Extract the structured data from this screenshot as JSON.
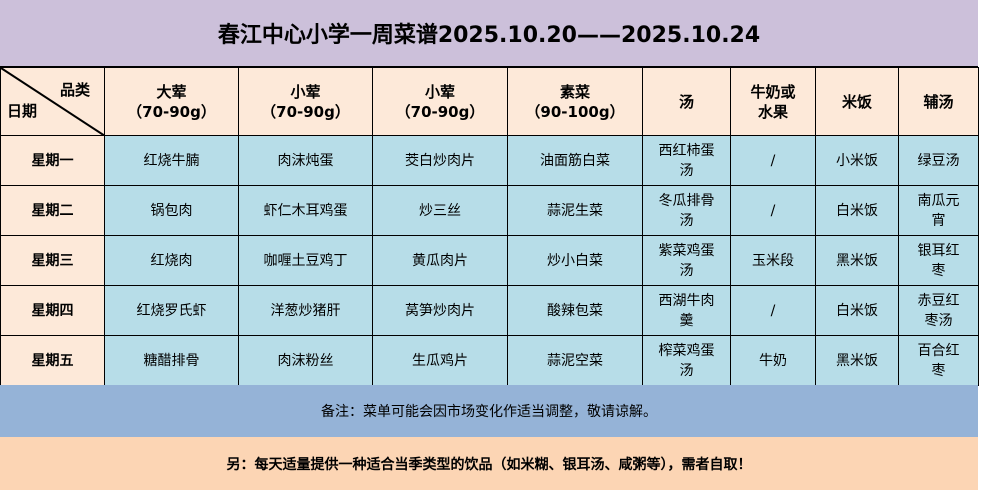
{
  "title": "春江中心小学一周菜谱2025.10.20——2025.10.24",
  "corner": {
    "category": "品类",
    "date": "日期"
  },
  "headers": [
    {
      "name": "大荤",
      "sub": "（70-90g）"
    },
    {
      "name": "小荤",
      "sub": "（70-90g）"
    },
    {
      "name": "小荤",
      "sub": "（70-90g）"
    },
    {
      "name": "素菜",
      "sub": "（90-100g）"
    },
    {
      "name": "汤",
      "sub": ""
    },
    {
      "name": "牛奶或",
      "sub": "水果"
    },
    {
      "name": "米饭",
      "sub": ""
    },
    {
      "name": "辅汤",
      "sub": ""
    }
  ],
  "rows": [
    {
      "day": "星期一",
      "cells": [
        "红烧牛腩",
        "肉沫炖蛋",
        "茭白炒肉片",
        "油面筋白菜",
        "西红柿蛋汤",
        "/",
        "小米饭",
        "绿豆汤"
      ]
    },
    {
      "day": "星期二",
      "cells": [
        "锅包肉",
        "虾仁木耳鸡蛋",
        "炒三丝",
        "蒜泥生菜",
        "冬瓜排骨汤",
        "/",
        "白米饭",
        "南瓜元宵"
      ]
    },
    {
      "day": "星期三",
      "cells": [
        "红烧肉",
        "咖喱土豆鸡丁",
        "黄瓜肉片",
        "炒小白菜",
        "紫菜鸡蛋汤",
        "玉米段",
        "黑米饭",
        "银耳红枣"
      ]
    },
    {
      "day": "星期四",
      "cells": [
        "红烧罗氏虾",
        "洋葱炒猪肝",
        "莴笋炒肉片",
        "酸辣包菜",
        "西湖牛肉羹",
        "/",
        "白米饭",
        "赤豆红枣汤"
      ]
    },
    {
      "day": "星期五",
      "cells": [
        "糖醋排骨",
        "肉沫粉丝",
        "生瓜鸡片",
        "蒜泥空菜",
        "榨菜鸡蛋汤",
        "牛奶",
        "黑米饭",
        "百合红枣"
      ]
    }
  ],
  "note": "备注：菜单可能会因市场变化作适当调整，敬请谅解。",
  "footer": "另：每天适量提供一种适合当季类型的饮品（如米糊、银耳汤、咸粥等），需者自取！"
}
